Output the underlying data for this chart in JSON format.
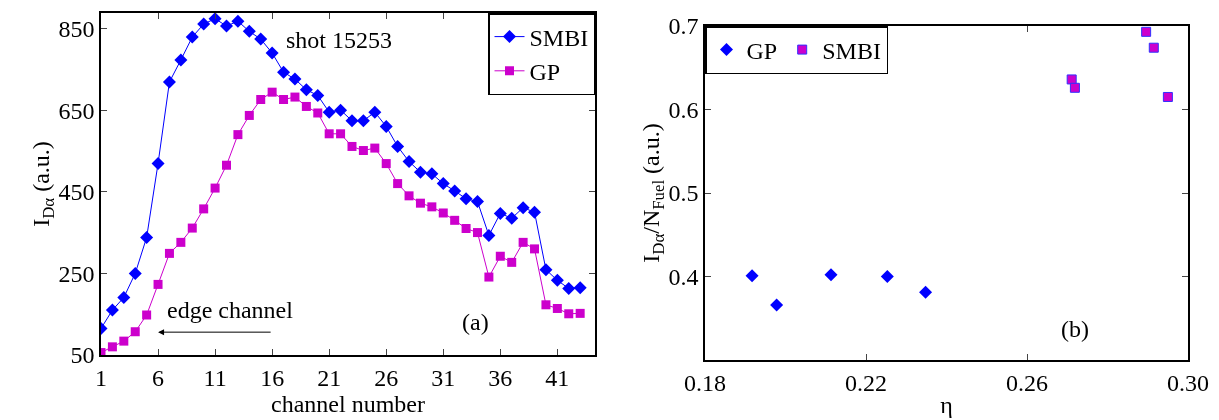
{
  "chart_data": [
    {
      "type": "line",
      "xlabel": "channel number",
      "ylabel": "I$_{Dα}$ (a.u.)",
      "x": [
        1,
        2,
        3,
        4,
        5,
        6,
        7,
        8,
        9,
        10,
        11,
        12,
        13,
        14,
        15,
        16,
        17,
        18,
        19,
        20,
        21,
        22,
        23,
        24,
        25,
        26,
        27,
        28,
        29,
        30,
        31,
        32,
        33,
        34,
        35,
        36,
        37,
        38,
        39,
        40,
        41,
        42,
        43
      ],
      "series": [
        {
          "name": "SMBI",
          "color": "#0000ff",
          "marker": "diamond",
          "values": [
            115,
            160,
            191,
            250,
            338,
            519,
            719,
            773,
            829,
            861,
            874,
            856,
            868,
            843,
            824,
            790,
            743,
            726,
            700,
            686,
            645,
            650,
            624,
            624,
            645,
            610,
            561,
            524,
            498,
            494,
            470,
            452,
            433,
            426,
            343,
            397,
            385,
            411,
            400,
            259,
            233,
            213,
            215
          ]
        },
        {
          "name": "GP",
          "color": "#cc00cc",
          "marker": "square",
          "values": [
            56,
            70,
            84,
            107,
            148,
            223,
            299,
            326,
            361,
            408,
            459,
            515,
            590,
            637,
            676,
            694,
            676,
            682,
            659,
            643,
            592,
            592,
            561,
            551,
            557,
            519,
            470,
            440,
            422,
            413,
            398,
            380,
            360,
            350,
            241,
            292,
            277,
            326,
            310,
            173,
            164,
            151,
            152
          ]
        }
      ],
      "xlim": [
        1,
        44.3
      ],
      "xticks": [
        1,
        6,
        11,
        16,
        21,
        26,
        31,
        36,
        41
      ],
      "ylim": [
        50,
        888
      ],
      "yticks": [
        50,
        250,
        450,
        650,
        850
      ],
      "grid": false,
      "legend": "top right",
      "line_style": "solid",
      "annotations": [
        "shot 15253",
        "edge channel",
        "(a)"
      ]
    },
    {
      "type": "scatter",
      "xlabel": "η",
      "ylabel": "I$_{Dα}$/N$_{Fuel}$ (a.u.)",
      "series": [
        {
          "name": "GP",
          "color": "#0000ff",
          "marker": "diamond",
          "x": [
            0.1917,
            0.1978,
            0.2113,
            0.2253,
            0.2348
          ],
          "values": [
            0.401,
            0.366,
            0.402,
            0.4,
            0.381
          ]
        },
        {
          "name": "SMBI",
          "color": "#cc00cc",
          "marker": "square",
          "x": [
            0.2711,
            0.2719,
            0.2896,
            0.2915,
            0.295
          ],
          "values": [
            0.636,
            0.626,
            0.693,
            0.674,
            0.615
          ]
        }
      ],
      "xlim": [
        0.18,
        0.3
      ],
      "xticks": [
        0.18,
        0.22,
        0.26,
        {
          "value": 0.3,
          "label": "0.30"
        }
      ],
      "ylim": [
        0.3,
        0.7
      ],
      "yticks": [
        0.4,
        0.5,
        0.6,
        0.7
      ],
      "grid": false,
      "legend": "top left",
      "annotations": [
        "(b)"
      ]
    }
  ]
}
